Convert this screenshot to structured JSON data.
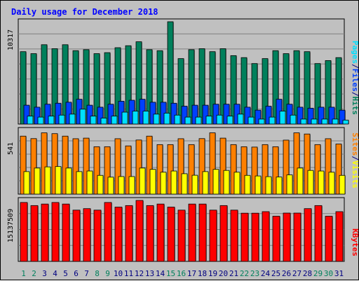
{
  "title": "Daily usage for December 2018",
  "colors": {
    "background": "#c0c0c0",
    "plot": "#c0c0c0",
    "grid": "#808080",
    "hits": "#00805c",
    "files": "#0040ff",
    "pages": "#00e0ff",
    "visits": "#ff8000",
    "sites": "#ffff00",
    "kbytes": "#ff0000",
    "title": "#0000ff",
    "weekend_day": "#00805c",
    "weekday": "#000080"
  },
  "chart_data": [
    {
      "type": "bar",
      "categories": [
        "1",
        "2",
        "3",
        "4",
        "5",
        "6",
        "7",
        "8",
        "9",
        "10",
        "11",
        "12",
        "13",
        "14",
        "15",
        "16",
        "17",
        "18",
        "19",
        "20",
        "21",
        "22",
        "23",
        "24",
        "25",
        "26",
        "27",
        "28",
        "29",
        "30",
        "31"
      ],
      "weekend_days": [
        "1",
        "2",
        "8",
        "9",
        "15",
        "16",
        "22",
        "23",
        "29",
        "30"
      ],
      "ylabel_max": "10317",
      "ylim": [
        0,
        10317
      ],
      "legend": [
        "Pages",
        "/",
        "Files",
        "/",
        "Hits"
      ],
      "series": [
        {
          "name": "Hits",
          "values": [
            7300,
            7100,
            8000,
            7600,
            8000,
            7400,
            7500,
            7100,
            7200,
            7700,
            7900,
            8300,
            7500,
            7400,
            10317,
            6600,
            7500,
            7600,
            7300,
            7600,
            6900,
            6700,
            6100,
            6600,
            7400,
            7100,
            7400,
            7300,
            6100,
            6400,
            6700
          ]
        },
        {
          "name": "Files",
          "values": [
            1900,
            1700,
            2000,
            2100,
            2200,
            2500,
            1900,
            1700,
            2000,
            2300,
            2400,
            2500,
            2200,
            2200,
            2100,
            1800,
            1900,
            1900,
            2000,
            2000,
            2000,
            1700,
            1400,
            1800,
            2500,
            2000,
            1700,
            1600,
            1700,
            1700,
            1400
          ]
        },
        {
          "name": "Pages",
          "values": [
            800,
            700,
            800,
            900,
            1000,
            1500,
            800,
            600,
            800,
            1200,
            1300,
            1300,
            1000,
            1100,
            900,
            700,
            700,
            800,
            900,
            800,
            1000,
            700,
            500,
            700,
            1300,
            900,
            500,
            500,
            500,
            500,
            400
          ]
        }
      ]
    },
    {
      "type": "bar",
      "categories": [
        "1",
        "2",
        "3",
        "4",
        "5",
        "6",
        "7",
        "8",
        "9",
        "10",
        "11",
        "12",
        "13",
        "14",
        "15",
        "16",
        "17",
        "18",
        "19",
        "20",
        "21",
        "22",
        "23",
        "24",
        "25",
        "26",
        "27",
        "28",
        "29",
        "30",
        "31"
      ],
      "ylabel_max": "541",
      "ylim": [
        0,
        541
      ],
      "legend": [
        "Sites",
        "/",
        "Visits"
      ],
      "series": [
        {
          "name": "Visits",
          "values": [
            492,
            471,
            520,
            513,
            492,
            470,
            475,
            402,
            402,
            470,
            409,
            459,
            492,
            420,
            420,
            470,
            420,
            471,
            520,
            475,
            420,
            402,
            399,
            420,
            402,
            458,
            520,
            510,
            420,
            470,
            425
          ]
        },
        {
          "name": "Sites",
          "values": [
            191,
            221,
            231,
            234,
            221,
            191,
            196,
            159,
            144,
            149,
            149,
            221,
            210,
            186,
            196,
            173,
            160,
            191,
            210,
            201,
            186,
            159,
            154,
            148,
            145,
            163,
            221,
            201,
            196,
            186,
            159
          ]
        }
      ]
    },
    {
      "type": "bar",
      "categories": [
        "1",
        "2",
        "3",
        "4",
        "5",
        "6",
        "7",
        "8",
        "9",
        "10",
        "11",
        "12",
        "13",
        "14",
        "15",
        "16",
        "17",
        "18",
        "19",
        "20",
        "21",
        "22",
        "23",
        "24",
        "25",
        "26",
        "27",
        "28",
        "29",
        "30",
        "31"
      ],
      "ylabel_max": "15137509",
      "ylim": [
        0,
        15137509
      ],
      "legend": [
        "KBytes"
      ],
      "series": [
        {
          "name": "KBytes",
          "values": [
            14630000,
            13860000,
            14240000,
            14630000,
            14240000,
            12730000,
            13100000,
            12730000,
            14630000,
            13480000,
            13860000,
            15137509,
            13860000,
            14240000,
            13480000,
            12730000,
            14240000,
            14240000,
            12730000,
            13860000,
            12730000,
            11970000,
            11970000,
            12350000,
            11220000,
            12000000,
            12000000,
            13100000,
            13860000,
            11220000,
            12350000
          ]
        }
      ]
    }
  ]
}
